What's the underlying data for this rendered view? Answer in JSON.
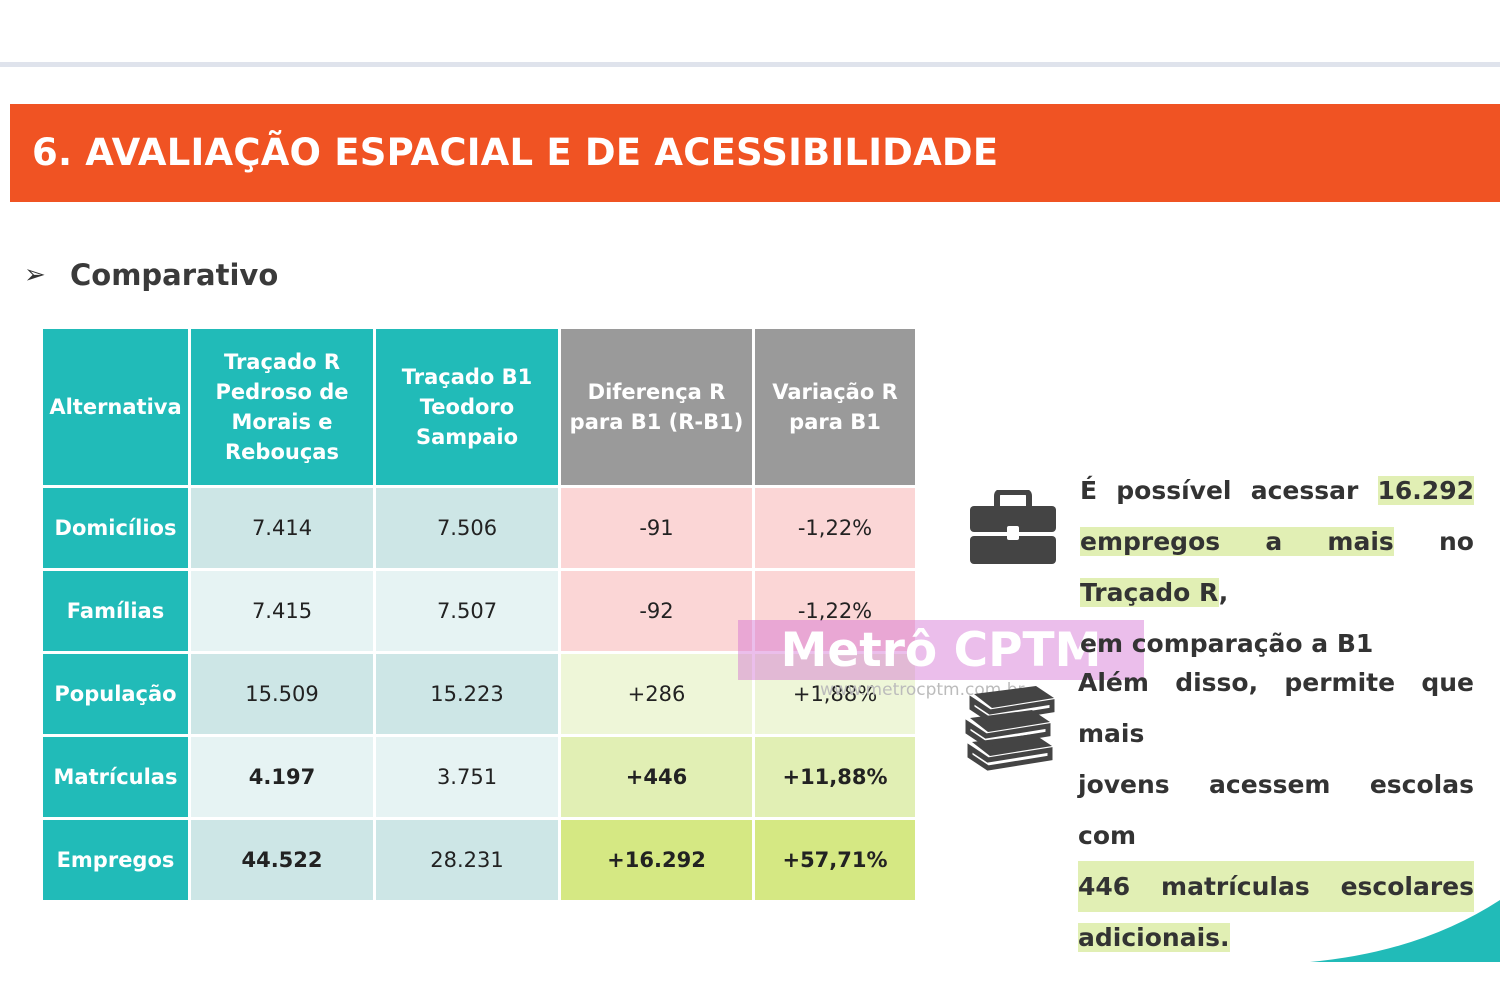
{
  "header": {
    "title": "6. AVALIAÇÃO ESPACIAL E DE ACESSIBILIDADE"
  },
  "section": {
    "bullet": "➢",
    "title": "Comparativo"
  },
  "table": {
    "headers": [
      "Alternativa",
      "Traçado R Pedroso de Morais e Rebouças",
      "Traçado B1 Teodoro Sampaio",
      "Diferença R para B1 (R-B1)",
      "Variação R para B1"
    ],
    "rows": [
      {
        "label": "Domicílios",
        "r": "7.414",
        "b1": "7.506",
        "diff": "-91",
        "var": "-1,22%"
      },
      {
        "label": "Famílias",
        "r": "7.415",
        "b1": "7.507",
        "diff": "-92",
        "var": "-1,22%"
      },
      {
        "label": "População",
        "r": "15.509",
        "b1": "15.223",
        "diff": "+286",
        "var": "+1,88%"
      },
      {
        "label": "Matrículas",
        "r": "4.197",
        "b1": "3.751",
        "diff": "+446",
        "var": "+11,88%"
      },
      {
        "label": "Empregos",
        "r": "44.522",
        "b1": "28.231",
        "diff": "+16.292",
        "var": "+57,71%"
      }
    ]
  },
  "notes": {
    "jobs": {
      "icon": "briefcase-icon",
      "l1a": "É possível acessar ",
      "l1b": "16.292",
      "l2a": "empregos a mais",
      "l2b": " no ",
      "l2c": "Traçado R",
      "l2d": ",",
      "l3": "em comparação a B1"
    },
    "schools": {
      "icon": "books-icon",
      "l1": "Além disso, permite que mais",
      "l2": "jovens acessem escolas com",
      "l3": "446 matrículas escolares",
      "l4": "adicionais."
    }
  },
  "watermark": {
    "text": "Metrô CPTM",
    "url": "www.metrocptm.com.br"
  },
  "colors": {
    "orange": "#f05323",
    "teal": "#21bbb8",
    "grey": "#9a9a9a",
    "pink": "#fbd6d6",
    "green": "#d5e883"
  }
}
